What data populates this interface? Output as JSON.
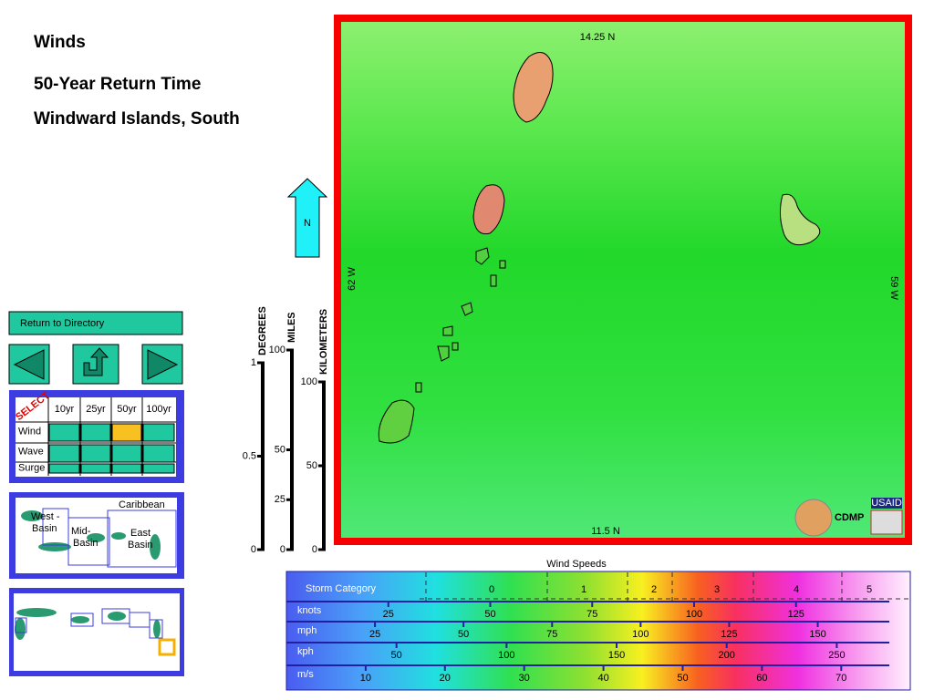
{
  "header": {
    "title": "Winds",
    "subtitle": "50-Year Return Time",
    "region": "Windward Islands, South"
  },
  "nav": {
    "return": "Return to Directory"
  },
  "selector": {
    "label": "SELECT",
    "columns": [
      "10yr",
      "25yr",
      "50yr",
      "100yr"
    ],
    "rows": [
      "Wind",
      "Wave",
      "Surge"
    ],
    "selected": [
      "Wind",
      "50yr"
    ]
  },
  "region_map": {
    "caribbean": "Caribbean",
    "west": [
      "West -",
      "Basin"
    ],
    "mid": [
      "Mid-",
      "Basin"
    ],
    "east": [
      "East",
      "Basin"
    ]
  },
  "north": "N",
  "scales": {
    "degrees": {
      "label": "DEGREES",
      "ticks": [
        1,
        0.5,
        0
      ]
    },
    "miles": {
      "label": "MILES",
      "ticks": [
        100,
        50,
        25,
        0
      ]
    },
    "kilometers": {
      "label": "KILOMETERS",
      "ticks": [
        100,
        50,
        0
      ]
    }
  },
  "map": {
    "top": "14.25 N",
    "bottom": "11.5 N",
    "left": "62 W",
    "right": "59 W",
    "credit": "CDMP",
    "logo": "USAID"
  },
  "legend": {
    "title": "Wind Speeds",
    "category_label": "Storm Category",
    "categories": [
      0,
      1,
      2,
      3,
      4,
      5
    ],
    "rows": [
      {
        "unit": "knots",
        "ticks": [
          25,
          50,
          75,
          100,
          125
        ]
      },
      {
        "unit": "mph",
        "ticks": [
          25,
          50,
          75,
          100,
          125,
          150
        ]
      },
      {
        "unit": "kph",
        "ticks": [
          50,
          100,
          150,
          200,
          250
        ]
      },
      {
        "unit": "m/s",
        "ticks": [
          10,
          20,
          30,
          40,
          50,
          60,
          70
        ]
      }
    ]
  }
}
